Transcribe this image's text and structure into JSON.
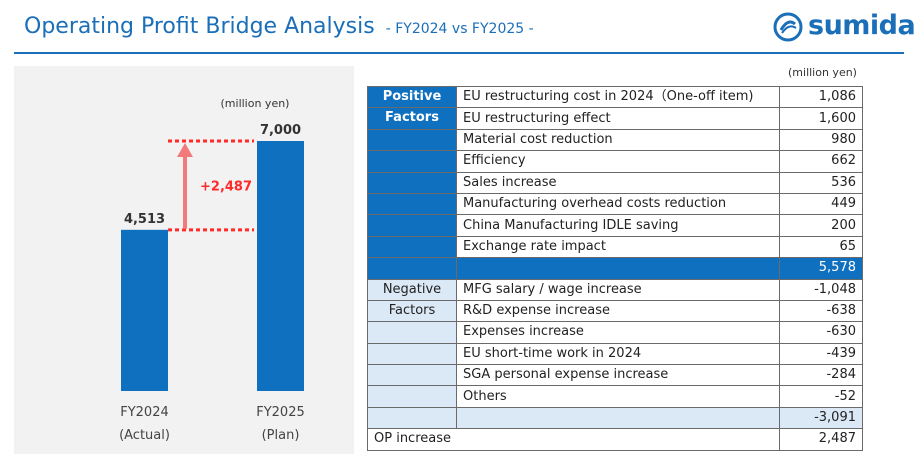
{
  "header": {
    "title": "Operating Profit Bridge Analysis",
    "subtitle": "- FY2024 vs FY2025 -",
    "logo_text": "sumida"
  },
  "colors": {
    "accent": "#1a6fb8",
    "bar": "#1070c0",
    "positive_fill": "#1070c0",
    "negative_fill": "#dbe8f5",
    "highlight": "#ff2a2a"
  },
  "chart_data": {
    "type": "bar",
    "unit": "(million yen)",
    "categories": [
      {
        "label": "FY2024",
        "note": "(Actual)"
      },
      {
        "label": "FY2025",
        "note": "(Plan)"
      }
    ],
    "values": [
      4513,
      7000
    ],
    "value_labels": [
      "4,513",
      "7,000"
    ],
    "difference": {
      "value": 2487,
      "label": "+2,487"
    },
    "ylim": [
      0,
      8000
    ]
  },
  "table": {
    "unit": "(million yen)",
    "positive": {
      "label_line1": "Positive",
      "label_line2": "Factors",
      "items": [
        {
          "name": "EU restructuring cost in 2024（One-off item)",
          "value": "1,086"
        },
        {
          "name": "EU restructuring effect",
          "value": "1,600"
        },
        {
          "name": "Material cost reduction",
          "value": "980"
        },
        {
          "name": "Efficiency",
          "value": "662"
        },
        {
          "name": "Sales increase",
          "value": "536"
        },
        {
          "name": "Manufacturing overhead costs reduction",
          "value": "449"
        },
        {
          "name": "China Manufacturing IDLE saving",
          "value": "200"
        },
        {
          "name": "Exchange rate impact",
          "value": "65"
        }
      ],
      "subtotal": "5,578"
    },
    "negative": {
      "label_line1": "Negative",
      "label_line2": "Factors",
      "items": [
        {
          "name": "MFG salary / wage increase",
          "value": "-1,048"
        },
        {
          "name": "R&D expense increase",
          "value": "-638"
        },
        {
          "name": "Expenses increase",
          "value": "-630"
        },
        {
          "name": "EU short-time work in 2024",
          "value": "-439"
        },
        {
          "name": "SGA personal expense increase",
          "value": "-284"
        },
        {
          "name": "Others",
          "value": "-52"
        }
      ],
      "subtotal": "-3,091"
    },
    "op_increase": {
      "label": "OP increase",
      "value": "2,487"
    }
  }
}
